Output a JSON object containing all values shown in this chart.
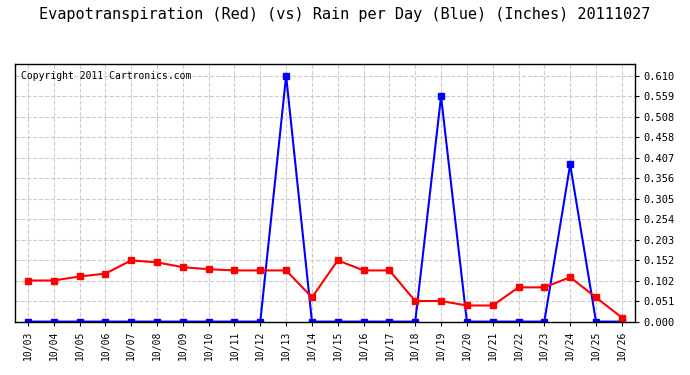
{
  "title": "Evapotranspiration (Red) (vs) Rain per Day (Blue) (Inches) 20111027",
  "copyright": "Copyright 2011 Cartronics.com",
  "dates": [
    "10/03",
    "10/04",
    "10/05",
    "10/06",
    "10/07",
    "10/08",
    "10/09",
    "10/10",
    "10/11",
    "10/12",
    "10/13",
    "10/14",
    "10/15",
    "10/16",
    "10/17",
    "10/18",
    "10/19",
    "10/20",
    "10/21",
    "10/22",
    "10/23",
    "10/24",
    "10/25",
    "10/26"
  ],
  "rain": [
    0.0,
    0.0,
    0.0,
    0.0,
    0.0,
    0.0,
    0.0,
    0.0,
    0.0,
    0.0,
    0.61,
    0.0,
    0.0,
    0.0,
    0.0,
    0.0,
    0.559,
    0.0,
    0.0,
    0.0,
    0.0,
    0.39,
    0.0,
    0.0
  ],
  "et": [
    0.102,
    0.102,
    0.112,
    0.119,
    0.152,
    0.147,
    0.135,
    0.13,
    0.127,
    0.127,
    0.127,
    0.06,
    0.152,
    0.127,
    0.127,
    0.051,
    0.051,
    0.04,
    0.04,
    0.085,
    0.085,
    0.11,
    0.06,
    0.01
  ],
  "rain_color": "#0000ff",
  "et_color": "#ff0000",
  "bg_color": "#ffffff",
  "grid_color": "#cccccc",
  "title_fontsize": 11,
  "copyright_fontsize": 7,
  "yticks": [
    0.0,
    0.051,
    0.102,
    0.152,
    0.203,
    0.254,
    0.305,
    0.356,
    0.407,
    0.458,
    0.508,
    0.559,
    0.61
  ],
  "ylim": [
    0.0,
    0.64
  ],
  "marker": "s",
  "markersize": 4,
  "linewidth": 1.5
}
